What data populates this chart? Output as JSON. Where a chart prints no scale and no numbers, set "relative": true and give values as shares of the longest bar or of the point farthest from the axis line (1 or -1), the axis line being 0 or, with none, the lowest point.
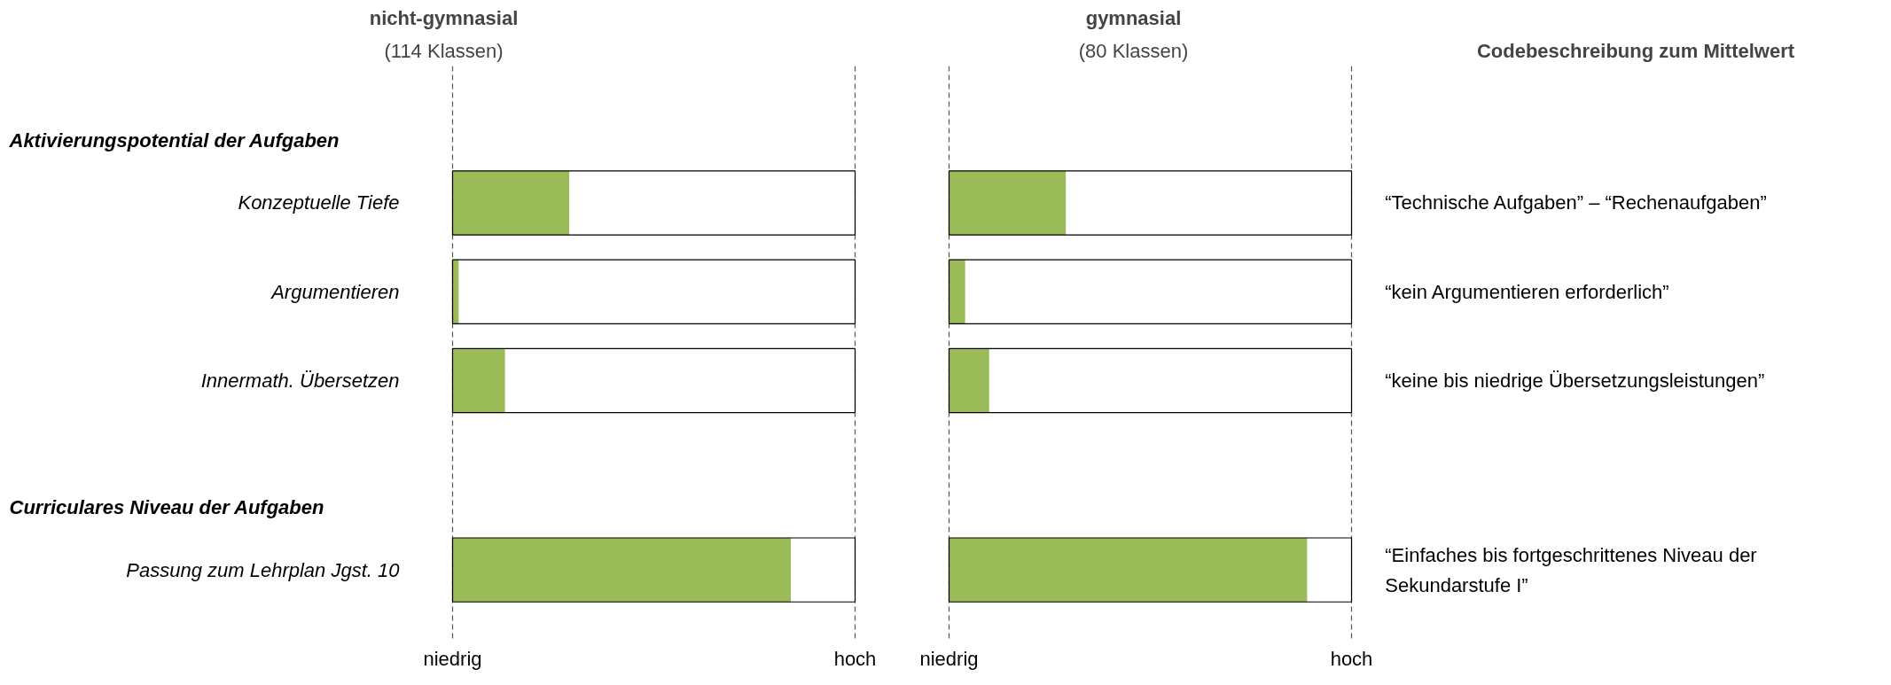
{
  "chart_data": [
    {
      "type": "bar",
      "orientation": "horizontal",
      "relative": true,
      "title": "nicht-gymnasial",
      "subtitle": "(114 Klassen)",
      "categories": [
        "Konzeptuelle Tiefe",
        "Argumentieren",
        "Innermath. Übersetzen",
        "Passung zum Lehrplan Jgst. 10"
      ],
      "values": [
        0.345,
        0.018,
        0.155,
        1
      ],
      "color": "#9bbb59",
      "tick_labels": "y",
      "ref_lines": [
        {
          "axis": "x",
          "value": 0,
          "label": "niedrig",
          "line_style": "dashed"
        },
        {
          "axis": "x",
          "value": 1.19,
          "label": "hoch",
          "line_style": "dashed"
        }
      ],
      "annotations": [
        "Aktivierungspotential der Aufgaben",
        "Curriculares Niveau der Aufgaben"
      ]
    },
    {
      "type": "bar",
      "orientation": "horizontal",
      "relative": true,
      "title": "gymnasial",
      "subtitle": "(80 Klassen)",
      "categories": [
        "Konzeptuelle Tiefe",
        "Argumentieren",
        "Innermath. Übersetzen",
        "Passung zum Lehrplan Jgst. 10"
      ],
      "values": [
        0.326,
        0.045,
        0.112,
        1
      ],
      "color": "#9bbb59",
      "tick_labels": false,
      "ref_lines": [
        {
          "axis": "x",
          "value": 0,
          "label": "niedrig",
          "line_style": "dashed"
        },
        {
          "axis": "x",
          "value": 1.124,
          "label": "hoch",
          "line_style": "dashed"
        }
      ]
    },
    {
      "type": "other",
      "title": "Codebeschreibung zum Mittelwert",
      "annotations": [
        "“Technische Aufgaben” – “Rechenaufgaben”",
        "“kein Argumentieren erforderlich”",
        "“keine bis niedrige Übersetzungsleistungen”",
        "“Einfaches bis fortgeschrittenes Niveau der Sekundarstufe I”"
      ]
    }
  ]
}
